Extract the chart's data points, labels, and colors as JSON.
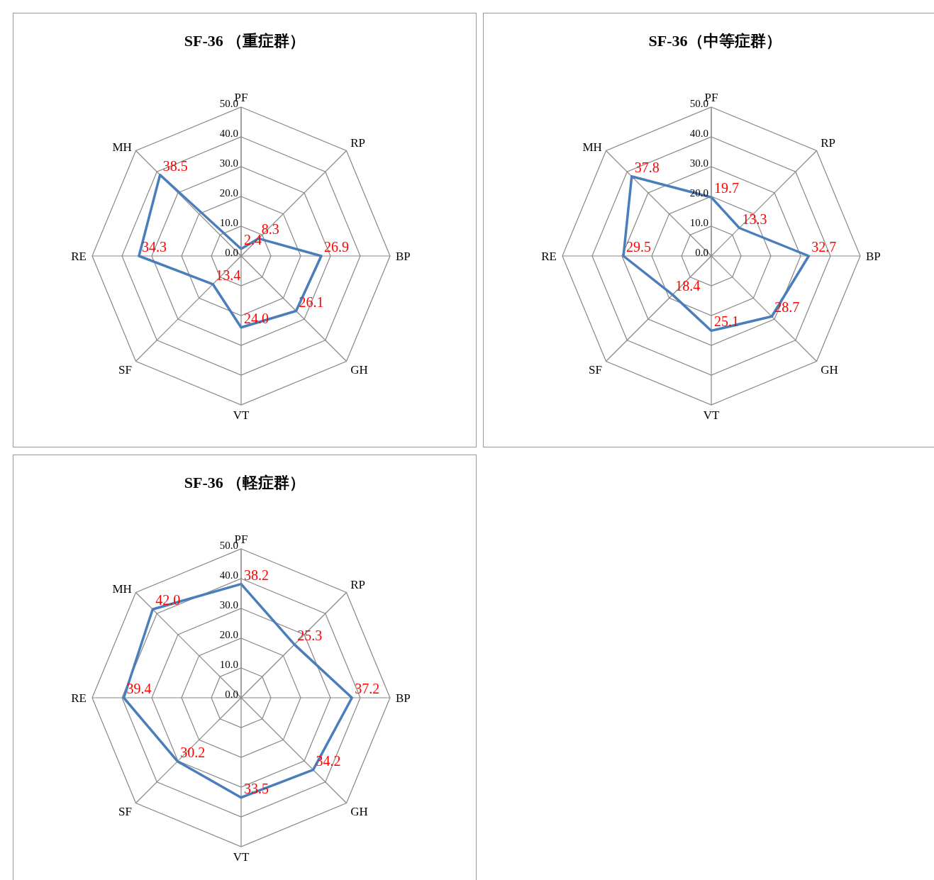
{
  "chart_data": [
    {
      "type": "radar",
      "title": "SF-36 （重症群）",
      "categories": [
        "PF",
        "RP",
        "BP",
        "GH",
        "VT",
        "SF",
        "RE",
        "MH"
      ],
      "ylim": [
        0,
        50
      ],
      "yticks": [
        {
          "value": 0,
          "label": "0.0"
        },
        {
          "value": 10,
          "label": "10.0"
        },
        {
          "value": 20,
          "label": "20.0"
        },
        {
          "value": 30,
          "label": "30.0"
        },
        {
          "value": 40,
          "label": "40.0"
        },
        {
          "value": 50,
          "label": "50.0"
        }
      ],
      "grid": true,
      "series": [
        {
          "color": "#4a7ebb",
          "values": [
            2.4,
            8.3,
            26.9,
            26.1,
            24.0,
            13.4,
            34.3,
            38.5
          ],
          "value_labels": [
            "2.4",
            "8.3",
            "26.9",
            "26.1",
            "24.0",
            "13.4",
            "34.3",
            "38.5"
          ]
        }
      ]
    },
    {
      "type": "radar",
      "title": "SF-36（中等症群）",
      "categories": [
        "PF",
        "RP",
        "BP",
        "GH",
        "VT",
        "SF",
        "RE",
        "MH"
      ],
      "ylim": [
        0,
        50
      ],
      "yticks": [
        {
          "value": 0,
          "label": "0.0"
        },
        {
          "value": 10,
          "label": "10.0"
        },
        {
          "value": 20,
          "label": "20.0"
        },
        {
          "value": 30,
          "label": "30.0"
        },
        {
          "value": 40,
          "label": "40.0"
        },
        {
          "value": 50,
          "label": "50.0"
        }
      ],
      "grid": true,
      "series": [
        {
          "color": "#4a7ebb",
          "values": [
            19.7,
            13.3,
            32.7,
            28.7,
            25.1,
            18.4,
            29.5,
            37.8
          ],
          "value_labels": [
            "19.7",
            "13.3",
            "32.7",
            "28.7",
            "25.1",
            "18.4",
            "29.5",
            "37.8"
          ]
        }
      ]
    },
    {
      "type": "radar",
      "title": "SF-36 （軽症群）",
      "categories": [
        "PF",
        "RP",
        "BP",
        "GH",
        "VT",
        "SF",
        "RE",
        "MH"
      ],
      "ylim": [
        0,
        50
      ],
      "yticks": [
        {
          "value": 0,
          "label": "0.0"
        },
        {
          "value": 10,
          "label": "10.0"
        },
        {
          "value": 20,
          "label": "20.0"
        },
        {
          "value": 30,
          "label": "30.0"
        },
        {
          "value": 40,
          "label": "40.0"
        },
        {
          "value": 50,
          "label": "50.0"
        }
      ],
      "grid": true,
      "series": [
        {
          "color": "#4a7ebb",
          "values": [
            38.2,
            25.3,
            37.2,
            34.2,
            33.5,
            30.2,
            39.4,
            42.0
          ],
          "value_labels": [
            "38.2",
            "25.3",
            "37.2",
            "34.2",
            "33.5",
            "30.2",
            "39.4",
            "42.0"
          ]
        }
      ]
    }
  ]
}
